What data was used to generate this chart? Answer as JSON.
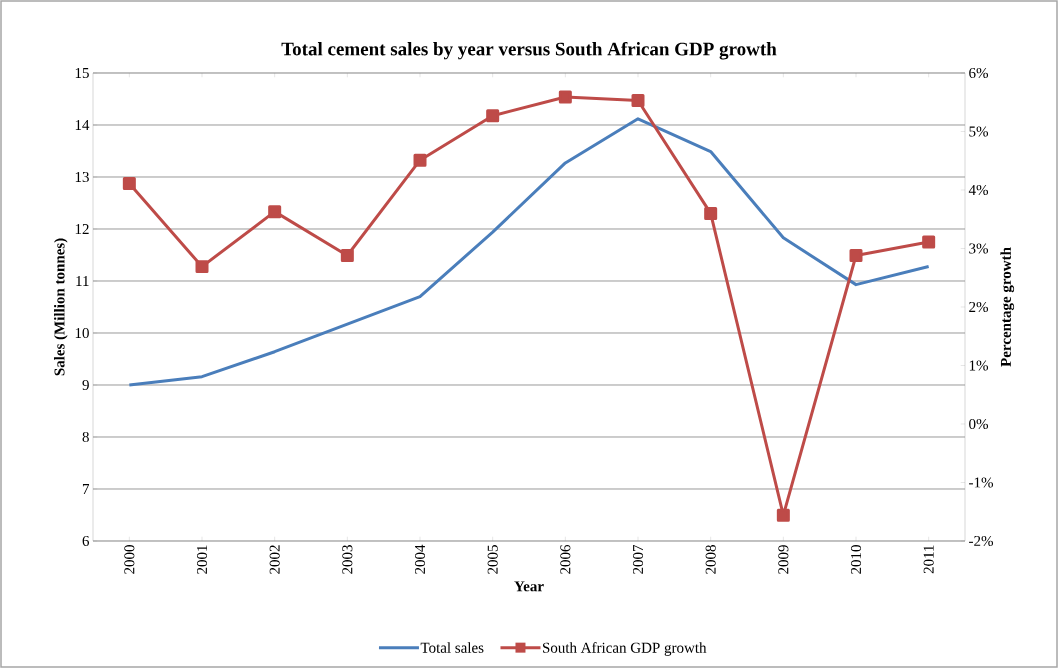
{
  "chart_data": {
    "type": "line",
    "title": "Total cement sales by year versus South African GDP growth",
    "xlabel": "Year",
    "ylabel": "Sales (Million tonnes)",
    "y2label": "Percentage growth",
    "categories": [
      "2000",
      "2001",
      "2002",
      "2003",
      "2004",
      "2005",
      "2006",
      "2007",
      "2008",
      "2009",
      "2010",
      "2011"
    ],
    "series": [
      {
        "name": "Total sales",
        "color": "#4a7ebb",
        "marker": "none",
        "values": [
          9.0,
          9.16,
          9.64,
          10.17,
          10.7,
          11.94,
          13.27,
          14.12,
          13.49,
          11.83,
          10.93,
          11.28
        ]
      },
      {
        "name": "South African GDP growth",
        "color": "#be4b48",
        "marker": "square",
        "axis": "y2",
        "values": [
          4.11,
          2.69,
          3.63,
          2.88,
          4.51,
          5.27,
          5.59,
          5.53,
          3.6,
          -1.56,
          2.88,
          3.11
        ]
      }
    ],
    "ylim": [
      6,
      15
    ],
    "yticks": [
      6,
      7,
      8,
      9,
      10,
      11,
      12,
      13,
      14,
      15
    ],
    "y2lim": [
      -2,
      6
    ],
    "y2ticks": [
      {
        "value": -2,
        "label": "-2%"
      },
      {
        "value": -1,
        "label": "-1%"
      },
      {
        "value": 0,
        "label": "0%"
      },
      {
        "value": 1,
        "label": "1%"
      },
      {
        "value": 2,
        "label": "2%"
      },
      {
        "value": 3,
        "label": "3%"
      },
      {
        "value": 4,
        "label": "4%"
      },
      {
        "value": 5,
        "label": "5%"
      },
      {
        "value": 6,
        "label": "6%"
      }
    ],
    "grid": "y",
    "legend": "bottom"
  }
}
